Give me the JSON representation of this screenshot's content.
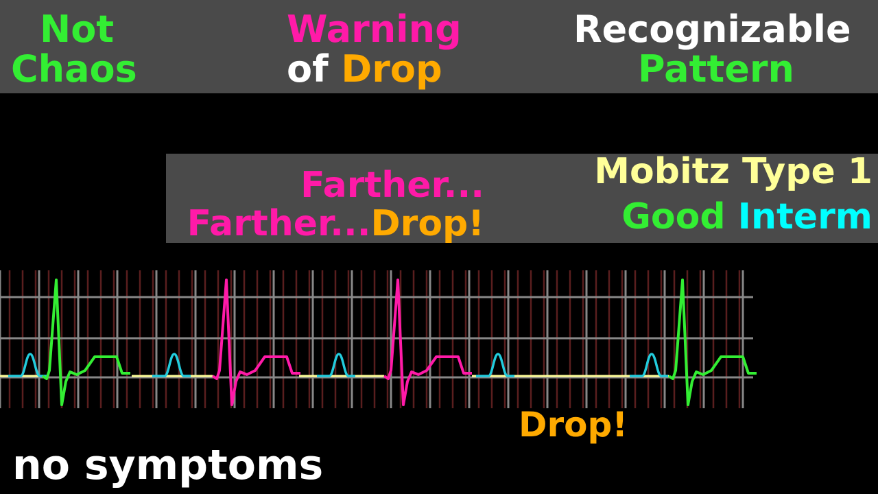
{
  "header": {
    "col1": {
      "line1": "Not",
      "line2": "Chaos"
    },
    "col2": {
      "line1": "Warning",
      "line2_a": "of",
      "line2_b": "Drop"
    },
    "col3": {
      "line1": "Recognizable",
      "line2": "Pattern"
    }
  },
  "explain": {
    "left": {
      "line1": "Farther...",
      "line2_a": "Farther...",
      "line2_b": "Drop!"
    },
    "right": {
      "line1": "Mobitz Type 1",
      "line2_a": "Good",
      "line2_b": "Interm"
    }
  },
  "strip": {
    "drop_label": "Drop!",
    "beats": [
      {
        "p_wave": true,
        "qrs": true,
        "color": "#33ee33"
      },
      {
        "p_wave": true,
        "qrs": true,
        "color": "#ff1aa8"
      },
      {
        "p_wave": true,
        "qrs": true,
        "color": "#ff1aa8"
      },
      {
        "p_wave": true,
        "qrs": false,
        "dropped": true
      },
      {
        "p_wave": true,
        "qrs": true,
        "color": "#33ee33"
      }
    ]
  },
  "footer": {
    "text": "no symptoms"
  },
  "colors": {
    "green": "#33ee33",
    "magenta": "#ff1aa8",
    "white": "#ffffff",
    "orange": "#ffaa00",
    "yellow": "#ffff99",
    "cyan": "#00ffff",
    "p_wave": "#22ccdd",
    "baseline": "#ffff99",
    "grid_major": "#888888",
    "grid_minor": "#5a1e1e",
    "band": "#4a4a4a"
  }
}
